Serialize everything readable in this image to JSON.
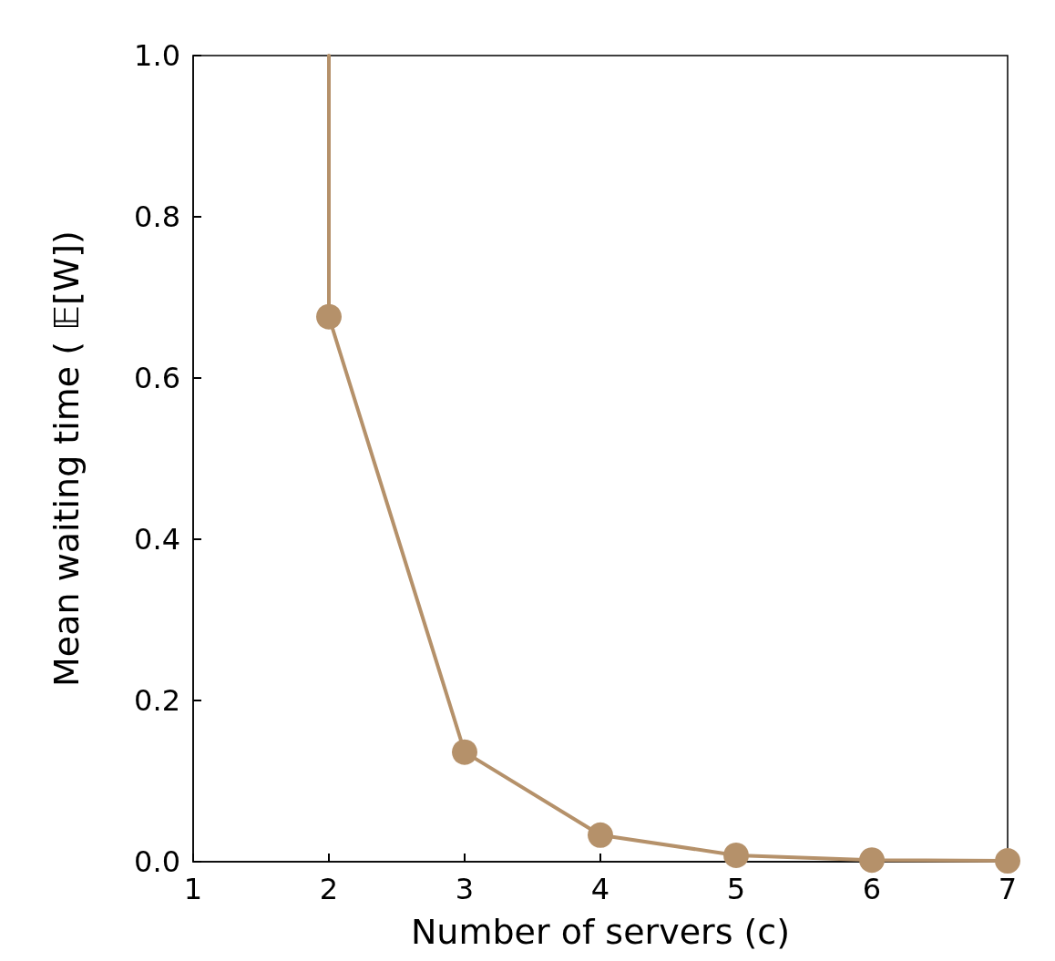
{
  "chart_data": {
    "type": "line",
    "xlabel": "Number of servers (c)",
    "ylabel": "Mean waiting time ( 𝔼[W])",
    "xlim": [
      1,
      7
    ],
    "xticks": [
      1,
      2,
      3,
      4,
      5,
      6,
      7
    ],
    "ylim": [
      0,
      1
    ],
    "yticks": [
      {
        "value": 0,
        "label": "0.0"
      },
      0.2,
      0.4,
      0.6,
      0.8,
      {
        "value": 1,
        "label": "1.0"
      }
    ],
    "grid": false,
    "marker": "circle",
    "line_style": "solid",
    "series": [
      {
        "color": "#b5916a",
        "x": [
          2,
          3,
          4,
          5,
          6,
          7
        ],
        "values": [
          0.676,
          0.136,
          0.033,
          0.008,
          0.002,
          0.001
        ]
      },
      {
        "color": "#b5916a",
        "x": [
          2,
          2
        ],
        "values": [
          0.676,
          1.0
        ],
        "marker": "none"
      }
    ]
  }
}
